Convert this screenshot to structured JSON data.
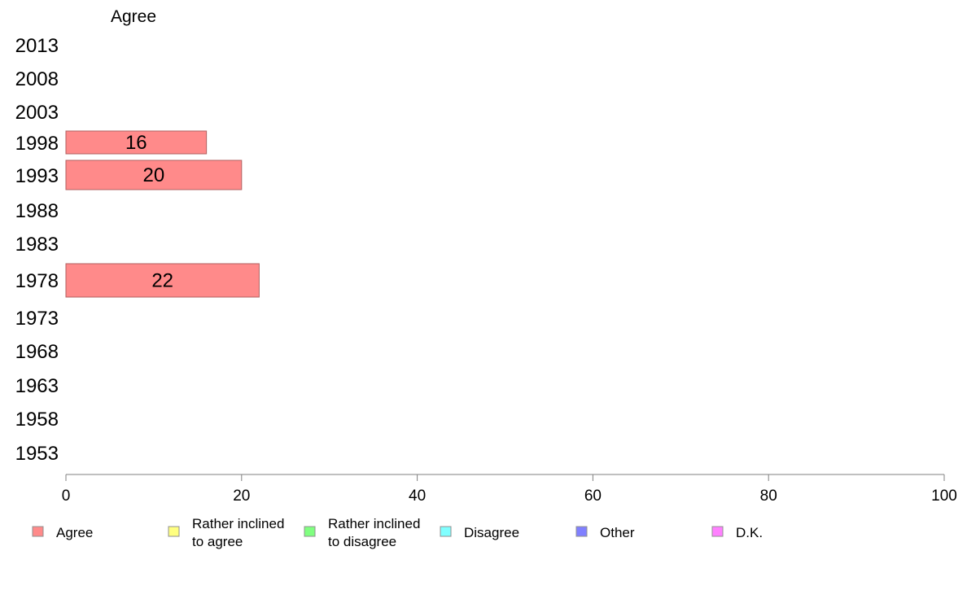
{
  "chart_data": {
    "type": "bar",
    "orientation": "horizontal",
    "title": "Agree",
    "categories": [
      "2013",
      "2008",
      "2003",
      "1998",
      "1993",
      "1988",
      "1983",
      "1978",
      "1973",
      "1968",
      "1963",
      "1958",
      "1953"
    ],
    "series": [
      {
        "name": "Agree",
        "color": "#ff8a8a",
        "values": [
          null,
          null,
          null,
          16,
          20,
          null,
          null,
          22,
          null,
          null,
          null,
          null,
          null
        ]
      }
    ],
    "xlim": [
      0,
      100
    ],
    "xticks": [
      "0",
      "20",
      "40",
      "60",
      "80",
      "100"
    ],
    "grid": false,
    "legend": {
      "placement": "bottom",
      "items": [
        {
          "lines": [
            "Agree"
          ],
          "color": "#ff8a8a"
        },
        {
          "lines": [
            "Rather inclined",
            "to agree"
          ],
          "color": "#ffff80"
        },
        {
          "lines": [
            "Rather inclined",
            "to disagree"
          ],
          "color": "#80ff80"
        },
        {
          "lines": [
            "Disagree"
          ],
          "color": "#80ffff"
        },
        {
          "lines": [
            "Other"
          ],
          "color": "#8080ff"
        },
        {
          "lines": [
            "D.K."
          ],
          "color": "#ff80ff"
        }
      ]
    }
  }
}
